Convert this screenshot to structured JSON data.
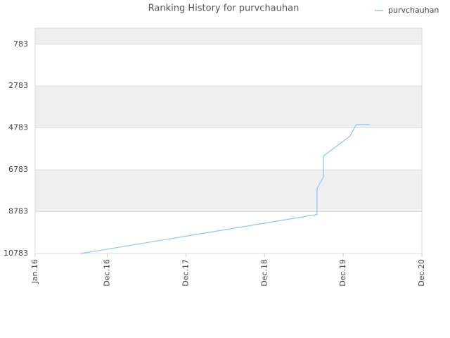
{
  "chart_data": {
    "type": "line",
    "title": "Ranking History for purvchauhan",
    "x": [
      "2016-08",
      "2019-08",
      "2019-08",
      "2019-09",
      "2019-09",
      "2020-01",
      "2020-02",
      "2020-04"
    ],
    "series": [
      {
        "name": "purvchauhan",
        "color": "#8ec3f0",
        "values": [
          10783,
          8920,
          7683,
          7120,
          6120,
          5183,
          4620,
          4620
        ]
      }
    ],
    "xlim": [
      "2016-01",
      "2020-12"
    ],
    "xticks": [
      {
        "value": "2016-01",
        "label": "Jan.16"
      },
      {
        "value": "2016-12",
        "label": "Dec.16"
      },
      {
        "value": "2017-12",
        "label": "Dec.17"
      },
      {
        "value": "2018-12",
        "label": "Dec.18"
      },
      {
        "value": "2019-12",
        "label": "Dec.19"
      },
      {
        "value": "2020-12",
        "label": "Dec.20"
      }
    ],
    "ylim": [
      10783,
      16
    ],
    "yticks": [
      783,
      2783,
      4783,
      6783,
      8783,
      10783
    ],
    "grid": true,
    "legend": "top-right"
  }
}
